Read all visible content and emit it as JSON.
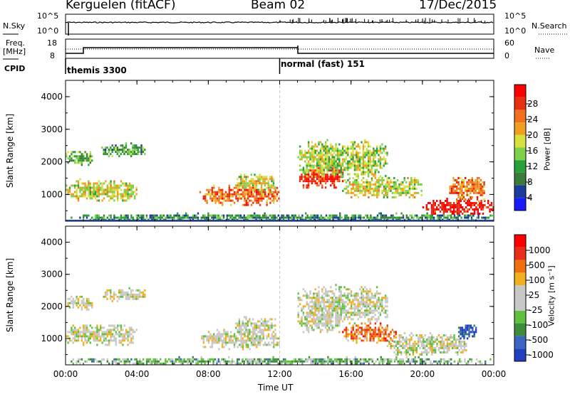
{
  "header": {
    "site": "Kerguelen (fitACF)",
    "beam": "Beam 02",
    "date": "17/Dec/2015"
  },
  "params": {
    "nsky_label": "N.Sky",
    "nsearch_label": "N.Search",
    "freq_label": "Freq.",
    "freq_unit": "[MHz]",
    "nave_label": "Nave",
    "cpid_label": "CPID",
    "nsky_ticks": [
      "10^5",
      "10^0"
    ],
    "nsearch_ticks": [
      "10^5",
      "10^0"
    ],
    "freq_ticks": [
      "18",
      "8"
    ],
    "nave_ticks": [
      "60",
      "0"
    ],
    "cpid_segments": [
      {
        "label": "themis 3300",
        "start_hour": 0
      },
      {
        "label": "normal (fast) 151",
        "start_hour": 12
      }
    ]
  },
  "colors": {
    "power": [
      "#1a1aff",
      "#1a3c9c",
      "#3a7a3a",
      "#2aa03a",
      "#7fd04a",
      "#d8e040",
      "#f0a020",
      "#f07020",
      "#e83010",
      "#ff0000"
    ],
    "velocity": [
      "#2040c0",
      "#3c64c0",
      "#3c8c3c",
      "#60c040",
      "#c8c8c8",
      "#c8c8c8",
      "#f0b020",
      "#f07010",
      "#e83018",
      "#ff0000"
    ]
  },
  "chart_data": [
    {
      "type": "heatmap",
      "title": "Power",
      "ylabel": "Slant Range [km]",
      "yticks": [
        "1000",
        "2000",
        "3000",
        "4000"
      ],
      "ylim": [
        180,
        4500
      ],
      "xlim_hours": [
        0,
        24
      ],
      "colorbar_label": "Power [dB]",
      "colorbar_ticks": [
        "28",
        "24",
        "20",
        "16",
        "12",
        "8",
        "4"
      ],
      "colorbar_range": [
        0,
        30
      ],
      "regions": [
        {
          "start": 0.0,
          "end": 4.0,
          "r1": 800,
          "r2": 1500,
          "level": 0.55
        },
        {
          "start": 0.0,
          "end": 1.5,
          "r1": 1900,
          "r2": 2400,
          "level": 0.4
        },
        {
          "start": 2.0,
          "end": 4.5,
          "r1": 2200,
          "r2": 2600,
          "level": 0.35
        },
        {
          "start": 7.5,
          "end": 12.0,
          "r1": 700,
          "r2": 1300,
          "level": 0.75
        },
        {
          "start": 9.5,
          "end": 11.8,
          "r1": 1100,
          "r2": 1700,
          "level": 0.55
        },
        {
          "start": 13.0,
          "end": 15.5,
          "r1": 1200,
          "r2": 1900,
          "level": 0.9
        },
        {
          "start": 13.0,
          "end": 18.0,
          "r1": 1500,
          "r2": 2700,
          "level": 0.5
        },
        {
          "start": 15.5,
          "end": 20.0,
          "r1": 900,
          "r2": 1600,
          "level": 0.55
        },
        {
          "start": 20.0,
          "end": 24.0,
          "r1": 400,
          "r2": 900,
          "level": 0.95
        },
        {
          "start": 21.5,
          "end": 23.5,
          "r1": 800,
          "r2": 1600,
          "level": 0.75
        },
        {
          "start": 0.0,
          "end": 24.0,
          "r1": 200,
          "r2": 450,
          "level": 0.3
        }
      ]
    },
    {
      "type": "heatmap",
      "title": "Velocity",
      "ylabel": "Slant Range [km]",
      "xlabel": "Time UT",
      "yticks": [
        "1000",
        "2000",
        "3000",
        "4000"
      ],
      "ylim": [
        180,
        4500
      ],
      "xticks": [
        "00:00",
        "04:00",
        "08:00",
        "12:00",
        "16:00",
        "20:00",
        "00:00"
      ],
      "xlim_hours": [
        0,
        24
      ],
      "colorbar_label": "Velocity [m s⁻¹]",
      "colorbar_ticks": [
        "1000",
        "500",
        "100",
        "25",
        "-25",
        "-100",
        "-500",
        "-1000"
      ],
      "regions": [
        {
          "start": 0.0,
          "end": 4.0,
          "r1": 800,
          "r2": 1500,
          "level": 0.5
        },
        {
          "start": 0.0,
          "end": 1.5,
          "r1": 1900,
          "r2": 2400,
          "level": 0.5
        },
        {
          "start": 2.0,
          "end": 4.5,
          "r1": 2200,
          "r2": 2600,
          "level": 0.5
        },
        {
          "start": 7.5,
          "end": 12.0,
          "r1": 700,
          "r2": 1300,
          "level": 0.5
        },
        {
          "start": 9.5,
          "end": 11.8,
          "r1": 1100,
          "r2": 1700,
          "level": 0.5
        },
        {
          "start": 13.0,
          "end": 15.5,
          "r1": 1200,
          "r2": 1900,
          "level": 0.5
        },
        {
          "start": 13.0,
          "end": 18.0,
          "r1": 1500,
          "r2": 2700,
          "level": 0.5
        },
        {
          "start": 15.5,
          "end": 18.5,
          "r1": 900,
          "r2": 1500,
          "level": 0.75
        },
        {
          "start": 18.0,
          "end": 22.5,
          "r1": 500,
          "r2": 1200,
          "level": 0.5
        },
        {
          "start": 22.0,
          "end": 23.0,
          "r1": 1000,
          "r2": 1500,
          "level": 0.05
        },
        {
          "start": 0.0,
          "end": 24.0,
          "r1": 200,
          "r2": 450,
          "level": 0.35
        }
      ]
    }
  ]
}
